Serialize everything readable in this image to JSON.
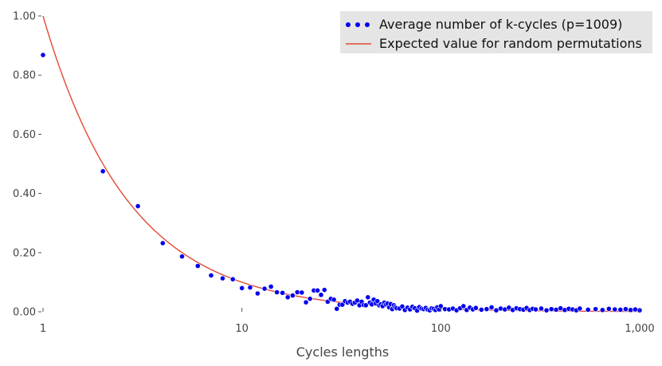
{
  "chart_data": {
    "type": "scatter",
    "title": "",
    "xlabel": "Cycles lengths",
    "ylabel": "",
    "xscale": "log",
    "xlim": [
      1,
      1000
    ],
    "ylim": [
      0,
      1.0
    ],
    "x_ticks": [
      {
        "value": 1,
        "label": "1"
      },
      {
        "value": 10,
        "label": "10"
      },
      {
        "value": 100,
        "label": "100"
      },
      {
        "value": 1000,
        "label": "1,000"
      }
    ],
    "y_ticks": [
      {
        "value": 0.0,
        "label": "0.00"
      },
      {
        "value": 0.2,
        "label": "0.20"
      },
      {
        "value": 0.4,
        "label": "0.40"
      },
      {
        "value": 0.6,
        "label": "0.60"
      },
      {
        "value": 0.8,
        "label": "0.80"
      },
      {
        "value": 1.0,
        "label": "1.00"
      }
    ],
    "grid": false,
    "legend_position": "top-right",
    "series": [
      {
        "name": "Average number of k-cycles (p=1009)",
        "kind": "scatter",
        "color": "#0000ee",
        "x": [
          1,
          2,
          3,
          4,
          5,
          6,
          7,
          8,
          9,
          10,
          11,
          12,
          13,
          14,
          15,
          16,
          17,
          18,
          19,
          20,
          21,
          22,
          23,
          24,
          25,
          26,
          27,
          28,
          29,
          30,
          31,
          32,
          33,
          34,
          35,
          36,
          37,
          38,
          39,
          40,
          41,
          42,
          43,
          44,
          45,
          46,
          47,
          48,
          49,
          50,
          51,
          52,
          53,
          54,
          55,
          56,
          57,
          58,
          59,
          60,
          62,
          64,
          66,
          68,
          70,
          72,
          74,
          76,
          78,
          80,
          82,
          84,
          86,
          88,
          90,
          92,
          94,
          96,
          98,
          100,
          105,
          110,
          115,
          120,
          125,
          130,
          135,
          140,
          145,
          150,
          160,
          170,
          180,
          190,
          200,
          210,
          220,
          230,
          240,
          250,
          260,
          270,
          280,
          290,
          300,
          320,
          340,
          360,
          380,
          400,
          420,
          440,
          460,
          480,
          500,
          550,
          600,
          650,
          700,
          750,
          800,
          850,
          900,
          950,
          1000
        ],
        "y": [
          0.868,
          0.475,
          0.357,
          0.232,
          0.187,
          0.155,
          0.123,
          0.113,
          0.11,
          0.08,
          0.082,
          0.062,
          0.078,
          0.085,
          0.066,
          0.064,
          0.049,
          0.055,
          0.066,
          0.065,
          0.032,
          0.044,
          0.072,
          0.072,
          0.057,
          0.074,
          0.034,
          0.044,
          0.041,
          0.01,
          0.024,
          0.024,
          0.036,
          0.031,
          0.034,
          0.027,
          0.031,
          0.038,
          0.022,
          0.034,
          0.023,
          0.022,
          0.049,
          0.031,
          0.025,
          0.041,
          0.029,
          0.036,
          0.022,
          0.025,
          0.019,
          0.031,
          0.025,
          0.028,
          0.015,
          0.026,
          0.009,
          0.022,
          0.016,
          0.012,
          0.011,
          0.018,
          0.006,
          0.014,
          0.008,
          0.017,
          0.012,
          0.004,
          0.016,
          0.011,
          0.009,
          0.013,
          0.007,
          0.005,
          0.012,
          0.01,
          0.006,
          0.015,
          0.008,
          0.019,
          0.009,
          0.008,
          0.011,
          0.005,
          0.012,
          0.019,
          0.006,
          0.014,
          0.008,
          0.013,
          0.007,
          0.009,
          0.015,
          0.005,
          0.011,
          0.008,
          0.014,
          0.006,
          0.012,
          0.009,
          0.007,
          0.013,
          0.006,
          0.01,
          0.008,
          0.011,
          0.005,
          0.009,
          0.007,
          0.012,
          0.006,
          0.01,
          0.008,
          0.005,
          0.011,
          0.007,
          0.009,
          0.006,
          0.01,
          0.008,
          0.007,
          0.009,
          0.006,
          0.008,
          0.005
        ]
      },
      {
        "name": "Expected value for random permutations",
        "kind": "line",
        "color": "#e24a33",
        "formula": "1/k"
      }
    ]
  }
}
